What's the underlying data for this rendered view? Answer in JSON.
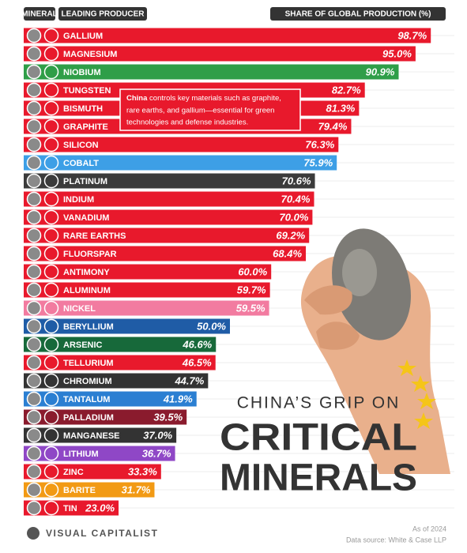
{
  "chart_data": {
    "type": "bar",
    "orientation": "horizontal",
    "header": {
      "mineral": "MINERAL",
      "producer": "LEADING PRODUCER",
      "share": "SHARE OF GLOBAL PRODUCTION (%)"
    },
    "title": [
      "CHINA’S GRIP ON",
      "CRITICAL",
      "MINERALS"
    ],
    "annotation": {
      "bold": "China",
      "text": [
        "controls key materials such as graphite,",
        "rare earths, and gallium—essential for green",
        "technologies and defense industries."
      ]
    },
    "categories": [
      "GALLIUM",
      "MAGNESIUM",
      "NIOBIUM",
      "TUNGSTEN",
      "BISMUTH",
      "GRAPHITE",
      "SILICON",
      "COBALT",
      "PLATINUM",
      "INDIUM",
      "VANADIUM",
      "RARE EARTHS",
      "FLUORSPAR",
      "ANTIMONY",
      "ALUMINUM",
      "NICKEL",
      "BERYLLIUM",
      "ARSENIC",
      "TELLURIUM",
      "CHROMIUM",
      "TANTALUM",
      "PALLADIUM",
      "MANGANESE",
      "LITHIUM",
      "ZINC",
      "BARITE",
      "TIN"
    ],
    "values": [
      98.7,
      95.0,
      90.9,
      82.7,
      81.3,
      79.4,
      76.3,
      75.9,
      70.6,
      70.4,
      70.0,
      69.2,
      68.4,
      60.0,
      59.7,
      59.5,
      50.0,
      46.6,
      46.5,
      44.7,
      41.9,
      39.5,
      37.0,
      36.7,
      33.3,
      31.7,
      23.0
    ],
    "value_labels": [
      "98.7%",
      "95.0%",
      "90.9%",
      "82.7%",
      "81.3%",
      "79.4%",
      "76.3%",
      "75.9%",
      "70.6%",
      "70.4%",
      "70.0%",
      "69.2%",
      "68.4%",
      "60.0%",
      "59.7%",
      "59.5%",
      "50.0%",
      "46.6%",
      "46.5%",
      "44.7%",
      "41.9%",
      "39.5%",
      "37.0%",
      "36.7%",
      "33.3%",
      "31.7%",
      "23.0%"
    ],
    "colors": [
      "#e8192c",
      "#e8192c",
      "#2f9e48",
      "#e8192c",
      "#e8192c",
      "#e8192c",
      "#e8192c",
      "#3d9fe6",
      "#3b3b3b",
      "#e8192c",
      "#e8192c",
      "#e8192c",
      "#e8192c",
      "#e8192c",
      "#e8192c",
      "#f27ba0",
      "#1f5ca6",
      "#17693a",
      "#e8192c",
      "#333333",
      "#2b7fd2",
      "#8a1b2d",
      "#333333",
      "#8f47c6",
      "#e8192c",
      "#f29a14",
      "#e8192c"
    ],
    "xlim": [
      0,
      100
    ],
    "source": {
      "brand": "VISUAL CAPITALIST",
      "date": "As of 2024",
      "data": "Data source: White & Case LLP"
    }
  }
}
